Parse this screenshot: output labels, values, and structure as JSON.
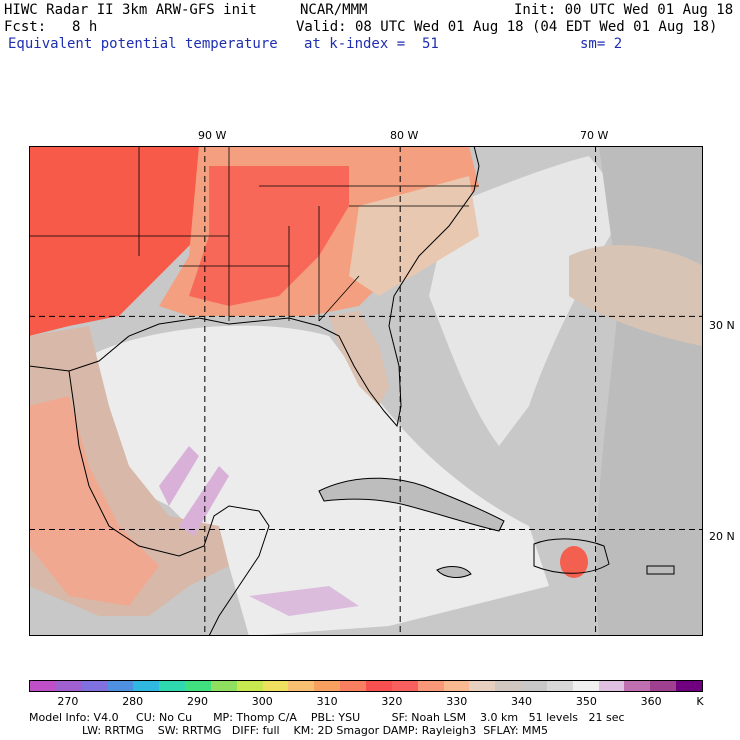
{
  "header": {
    "model": "HIWC Radar II 3km ARW-GFS init",
    "org": "NCAR/MMM",
    "init": "Init: 00 UTC Wed 01 Aug 18",
    "fcst_label": "Fcst:",
    "fcst_value": "8 h",
    "valid": "Valid: 08 UTC Wed 01 Aug 18 (04 EDT Wed 01 Aug 18)",
    "field": "Equivalent potential temperature",
    "level": "at k-index =  51",
    "smooth": "sm= 2"
  },
  "map": {
    "longitude_labels": [
      "90 W",
      "80 W",
      "70 W"
    ],
    "latitude_labels": [
      "30 N",
      "20 N"
    ],
    "longitudes": [
      -90,
      -80,
      -70
    ],
    "latitudes": [
      30,
      20
    ],
    "extent": {
      "west": -99,
      "east": -64.5,
      "south": 15,
      "north": 38
    }
  },
  "colorbar": {
    "unit": "K",
    "tick_labels": [
      "270",
      "280",
      "290",
      "300",
      "310",
      "320",
      "330",
      "340",
      "350",
      "360"
    ],
    "colors": [
      "#c050c8",
      "#a060d0",
      "#8070e0",
      "#5090e0",
      "#30b8e0",
      "#30d8b0",
      "#40e080",
      "#90e060",
      "#c8e850",
      "#f0e060",
      "#f8c070",
      "#f8a060",
      "#f88060",
      "#f85050",
      "#f86060",
      "#f89878",
      "#f8b890",
      "#e8d0c0",
      "#d0c8c0",
      "#c8c8c8",
      "#d8d8d8",
      "#f0f0f0",
      "#e0c0e0",
      "#c070b0",
      "#a04090",
      "#700080"
    ]
  },
  "footer": {
    "line1": "Model Info: V4.0     CU: No Cu      MP: Thomp C/A    PBL: YSU         SF: Noah LSM    3.0 km   51 levels   21 sec",
    "line2": "LW: RRTMG    SW: RRTMG   DIFF: full    KM: 2D Smagor DAMP: Rayleigh3  SFLAY: MM5"
  }
}
